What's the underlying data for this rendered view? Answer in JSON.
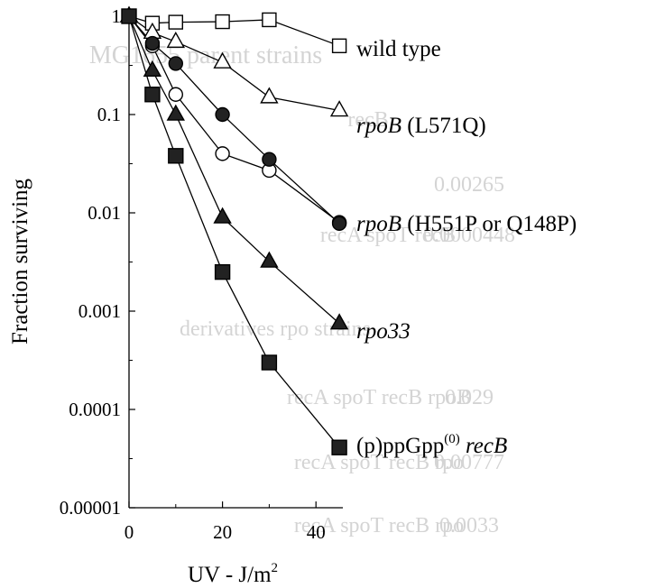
{
  "chart_data": {
    "type": "line",
    "title": "",
    "xlabel": "UV - J/m²",
    "xlabel_base": "UV - J/m",
    "xlabel_sup": "2",
    "ylabel": "Fraction surviving",
    "x_scale": "linear",
    "y_scale": "log",
    "xlim": [
      0,
      48
    ],
    "ylim": [
      1e-05,
      1
    ],
    "x_ticks": [
      0,
      20,
      40
    ],
    "x_tick_labels": [
      "0",
      "20",
      "40"
    ],
    "y_ticks": [
      1,
      0.1,
      0.01,
      0.001,
      0.0001,
      1e-05
    ],
    "y_tick_labels": [
      "1",
      "0.1",
      "0.01",
      "0.001",
      "0.0001",
      "0.00001"
    ],
    "grid": false,
    "legend": "inline labels to the right of each curve",
    "series": [
      {
        "name": "wild type",
        "label_parts": [
          {
            "text": "wild type",
            "italic": false
          }
        ],
        "marker": "square-open",
        "x": [
          0,
          5,
          10,
          20,
          30,
          45
        ],
        "y": [
          1.0,
          0.85,
          0.87,
          0.88,
          0.92,
          0.5
        ]
      },
      {
        "name": "rpoB (L571Q)",
        "label_parts": [
          {
            "text": "rpoB",
            "italic": true
          },
          {
            "text": " (L571Q)",
            "italic": false
          }
        ],
        "marker": "triangle-open",
        "x": [
          0,
          5,
          10,
          20,
          30,
          45
        ],
        "y": [
          1.0,
          0.68,
          0.55,
          0.34,
          0.15,
          0.11
        ]
      },
      {
        "name": "rpoB (H551P or Q148P)",
        "label_parts": [
          {
            "text": "rpoB",
            "italic": true
          },
          {
            "text": " (H551P or Q148P)",
            "italic": false
          }
        ],
        "marker": "circle-open",
        "x": [
          0,
          5,
          10,
          20,
          30,
          45
        ],
        "y": [
          1.0,
          0.5,
          0.16,
          0.04,
          0.027,
          0.008
        ]
      },
      {
        "name": "",
        "label_parts": [],
        "marker": "circle-filled",
        "x": [
          0,
          5,
          10,
          20,
          30,
          45
        ],
        "y": [
          1.0,
          0.53,
          0.33,
          0.1,
          0.035,
          0.0078
        ]
      },
      {
        "name": "rpo33",
        "label_parts": [
          {
            "text": "rpo33",
            "italic": true
          }
        ],
        "marker": "triangle-filled",
        "x": [
          0,
          5,
          10,
          20,
          30,
          45
        ],
        "y": [
          1.0,
          0.28,
          0.1,
          0.009,
          0.0032,
          0.00075
        ]
      },
      {
        "name": "(p)ppGpp(0) recB",
        "label_parts": [
          {
            "text": "(p)ppGpp",
            "italic": false
          },
          {
            "text": "(0)",
            "italic": false,
            "sup": true
          },
          {
            "text": " recB",
            "italic": true
          }
        ],
        "marker": "square-filled",
        "x": [
          0,
          5,
          10,
          20,
          30,
          45
        ],
        "y": [
          1.0,
          0.16,
          0.038,
          0.0025,
          0.0003,
          4.1e-05
        ]
      }
    ]
  },
  "background_ghost_text": {
    "color": "#d4d4d4",
    "lines": [
      "MG1655 parent strains",
      "recB",
      "0.00265",
      "recA spoT recB",
      "0.0000448",
      "derivatives rpo strains",
      "recA spoT recB rpoB",
      "0.029",
      "recA spoT recB rpo",
      "0.00777",
      "recA spoT recB rpo",
      "0.0033"
    ]
  }
}
